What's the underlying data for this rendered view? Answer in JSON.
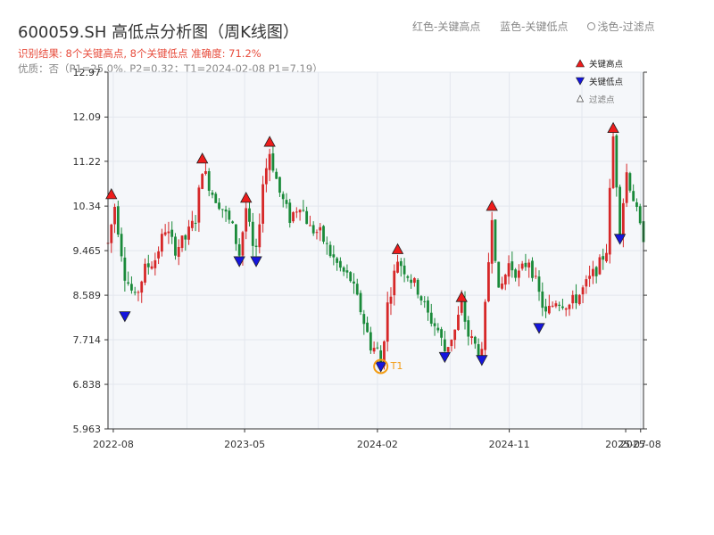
{
  "header": {
    "title": "600059.SH 高低点分析图（周K线图）",
    "result_text": "识别结果: 8个关键高点, 8个关键低点  准确度: 71.2%",
    "quality_text": "优质：否（P1=25.0%, P2=0.32；T1=2024-02-08 P1=7.19）",
    "legend_red": "红色-关键高点",
    "legend_blue": "蓝色-关键低点",
    "legend_light": "浅色-过滤点"
  },
  "colors": {
    "up": "#d62728",
    "down": "#1a8a3a",
    "high_marker": "#ee1c1c",
    "low_marker": "#1515dd",
    "t1_ring": "#f39c12",
    "plot_bg": "#f5f7fa"
  },
  "chart_data": {
    "type": "candlestick",
    "xlabel": "",
    "ylabel": "",
    "x_ticks": [
      "2022-08",
      "2023-05",
      "2024-02",
      "2024-11",
      "2025-07",
      "2025-08"
    ],
    "y_ticks": [
      "5.963",
      "6.838",
      "7.714",
      "8.589",
      "9.465",
      "10.34",
      "11.22",
      "12.09",
      "12.97"
    ],
    "ylim": [
      5.963,
      12.97
    ],
    "xlim": [
      "2022-07-21",
      "2025-08-07"
    ],
    "grid": true,
    "legend": {
      "placement": "top-right",
      "items": [
        "关键高点",
        "关键低点",
        "过滤点"
      ]
    },
    "weekly_close_path": [
      [
        "2022-07-21",
        9.6
      ],
      [
        "2022-08-04",
        10.35
      ],
      [
        "2022-08-25",
        9.0
      ],
      [
        "2022-09-15",
        8.5
      ],
      [
        "2022-10-06",
        9.1
      ],
      [
        "2022-10-27",
        9.3
      ],
      [
        "2022-11-17",
        9.9
      ],
      [
        "2022-12-08",
        9.5
      ],
      [
        "2022-12-29",
        9.7
      ],
      [
        "2023-01-19",
        10.1
      ],
      [
        "2023-02-02",
        11.1
      ],
      [
        "2023-02-23",
        10.6
      ],
      [
        "2023-03-16",
        10.3
      ],
      [
        "2023-04-06",
        9.9
      ],
      [
        "2023-04-20",
        9.4
      ],
      [
        "2023-05-04",
        10.3
      ],
      [
        "2023-05-18",
        9.5
      ],
      [
        "2023-05-25",
        9.4
      ],
      [
        "2023-06-08",
        10.8
      ],
      [
        "2023-06-22",
        11.4
      ],
      [
        "2023-07-13",
        10.6
      ],
      [
        "2023-08-03",
        10.1
      ],
      [
        "2023-08-24",
        10.4
      ],
      [
        "2023-09-14",
        9.9
      ],
      [
        "2023-10-05",
        9.8
      ],
      [
        "2023-10-26",
        9.4
      ],
      [
        "2023-11-16",
        9.1
      ],
      [
        "2023-12-07",
        8.9
      ],
      [
        "2023-12-28",
        8.3
      ],
      [
        "2024-01-18",
        7.6
      ],
      [
        "2024-02-01",
        7.5
      ],
      [
        "2024-02-08",
        7.19
      ],
      [
        "2024-02-22",
        8.4
      ],
      [
        "2024-03-14",
        9.3
      ],
      [
        "2024-04-04",
        9.0
      ],
      [
        "2024-04-25",
        8.7
      ],
      [
        "2024-05-16",
        8.2
      ],
      [
        "2024-06-06",
        7.9
      ],
      [
        "2024-06-20",
        7.5
      ],
      [
        "2024-07-11",
        7.9
      ],
      [
        "2024-07-25",
        8.4
      ],
      [
        "2024-08-08",
        7.8
      ],
      [
        "2024-08-22",
        7.6
      ],
      [
        "2024-09-05",
        7.4
      ],
      [
        "2024-09-26",
        10.2
      ],
      [
        "2024-10-10",
        8.6
      ],
      [
        "2024-10-31",
        9.2
      ],
      [
        "2024-11-21",
        9.0
      ],
      [
        "2024-12-12",
        9.3
      ],
      [
        "2025-01-02",
        8.6
      ],
      [
        "2025-01-16",
        8.2
      ],
      [
        "2025-02-06",
        8.5
      ],
      [
        "2025-03-06",
        8.4
      ],
      [
        "2025-03-27",
        8.6
      ],
      [
        "2025-04-17",
        8.9
      ],
      [
        "2025-05-08",
        9.2
      ],
      [
        "2025-05-22",
        9.5
      ],
      [
        "2025-06-05",
        11.7
      ],
      [
        "2025-06-19",
        9.9
      ],
      [
        "2025-07-03",
        11.0
      ],
      [
        "2025-07-17",
        10.5
      ],
      [
        "2025-07-31",
        9.9
      ],
      [
        "2025-08-07",
        9.75
      ]
    ],
    "key_highs": [
      {
        "date": "2022-07-28",
        "value": 10.45
      },
      {
        "date": "2023-02-02",
        "value": 11.15
      },
      {
        "date": "2023-05-04",
        "value": 10.38
      },
      {
        "date": "2023-06-22",
        "value": 11.48
      },
      {
        "date": "2024-03-14",
        "value": 9.37
      },
      {
        "date": "2024-07-25",
        "value": 8.43
      },
      {
        "date": "2024-09-26",
        "value": 10.22
      },
      {
        "date": "2025-06-05",
        "value": 11.75
      }
    ],
    "key_lows": [
      {
        "date": "2022-08-25",
        "value": 8.3
      },
      {
        "date": "2023-04-20",
        "value": 9.38
      },
      {
        "date": "2023-05-25",
        "value": 9.38
      },
      {
        "date": "2024-02-08",
        "value": 7.19
      },
      {
        "date": "2024-06-20",
        "value": 7.5
      },
      {
        "date": "2024-09-05",
        "value": 7.44
      },
      {
        "date": "2025-01-02",
        "value": 8.07
      },
      {
        "date": "2025-06-19",
        "value": 9.82
      }
    ],
    "t1": {
      "label": "T1",
      "date": "2024-02-08",
      "value": 7.19
    }
  }
}
